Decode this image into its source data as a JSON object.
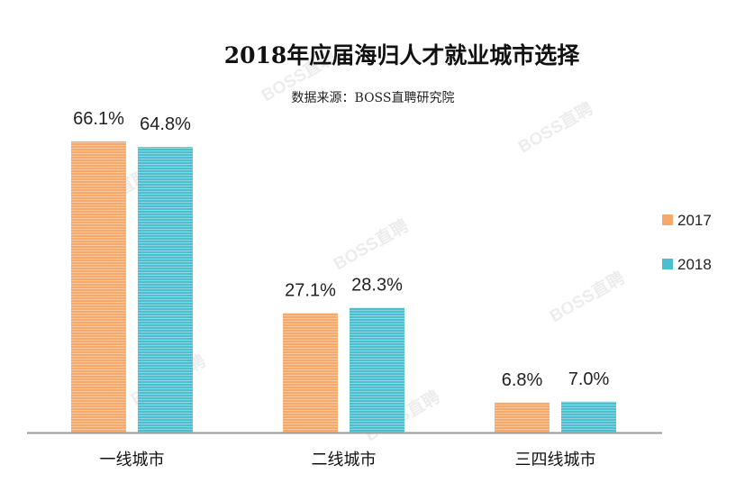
{
  "chart_data": {
    "type": "bar",
    "title": "2018年应届海归人才就业城市选择",
    "subtitle": "数据来源：BOSS直聘研究院",
    "categories": [
      "一线城市",
      "二线城市",
      "三四线城市"
    ],
    "series": [
      {
        "name": "2017",
        "values": [
          66.1,
          27.1,
          6.8
        ],
        "labels": [
          "66.1%",
          "27.1%",
          "6.8%"
        ],
        "color": "#F5A96A"
      },
      {
        "name": "2018",
        "values": [
          64.8,
          28.3,
          7.0
        ],
        "labels": [
          "64.8%",
          "28.3%",
          "7.0%"
        ],
        "color": "#4BBFD0"
      }
    ],
    "ylim": [
      0,
      67.5
    ],
    "grid": false,
    "legend_position": "right",
    "watermark": "BOSS直聘"
  }
}
